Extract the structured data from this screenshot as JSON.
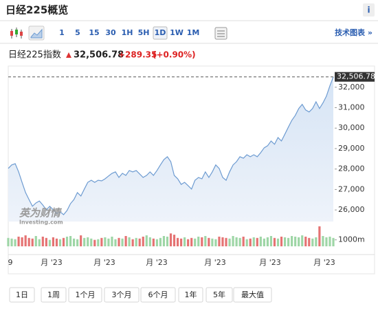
{
  "header": {
    "title": "日经225概览",
    "info": "i"
  },
  "toolbar": {
    "intervals": [
      "1",
      "5",
      "15",
      "30",
      "1H",
      "5H",
      "1D",
      "1W",
      "1M"
    ],
    "selected_index": 6,
    "link": "技术图表 »"
  },
  "quote": {
    "name": "日经225指数",
    "price": "32,506.78",
    "change": "+289.35",
    "change_pct": "(+0.90%)"
  },
  "chart_data": {
    "type": "line",
    "color": "#6d9bd1",
    "values": [
      28030,
      28200,
      28260,
      27860,
      27350,
      26850,
      26510,
      26180,
      26340,
      26440,
      26240,
      26010,
      26180,
      26010,
      25840,
      25910,
      25770,
      25970,
      26310,
      26510,
      26850,
      26680,
      27020,
      27350,
      27450,
      27350,
      27450,
      27420,
      27520,
      27660,
      27790,
      27860,
      27590,
      27790,
      27690,
      27930,
      27860,
      27930,
      27760,
      27590,
      27690,
      27860,
      27690,
      27930,
      28200,
      28460,
      28600,
      28360,
      27690,
      27520,
      27250,
      27350,
      27190,
      27020,
      27450,
      27590,
      27520,
      27860,
      27590,
      27860,
      28200,
      28030,
      27590,
      27450,
      27860,
      28200,
      28360,
      28600,
      28530,
      28700,
      28600,
      28700,
      28600,
      28800,
      29040,
      29140,
      29370,
      29210,
      29540,
      29370,
      29710,
      30050,
      30380,
      30620,
      30960,
      31160,
      30890,
      30790,
      30960,
      31290,
      30960,
      31230,
      31560,
      32070,
      32506.78
    ],
    "ylim": [
      25500,
      32900
    ],
    "yticks": [
      {
        "value": 26000,
        "label": "26,000"
      },
      {
        "value": 27000,
        "label": "27,000"
      },
      {
        "value": 28000,
        "label": "28,000"
      },
      {
        "value": 29000,
        "label": "29,000"
      },
      {
        "value": 30000,
        "label": "30,000"
      },
      {
        "value": 31000,
        "label": "31,000"
      },
      {
        "value": 32000,
        "label": "32,000"
      }
    ],
    "x_labels": [
      "9",
      "月 '23",
      "月 '23",
      "月 '23",
      "月 '23",
      "月 '23",
      "月 '23"
    ],
    "watermark": "英为财情",
    "watermark_sub": "Investing.com",
    "volume": {
      "values": [
        1300,
        1200,
        1100,
        1500,
        1400,
        1700,
        1300,
        1200,
        1600,
        1100,
        1500,
        1300,
        1000,
        1400,
        1200,
        1100,
        1300,
        1500,
        1600,
        1200,
        1100,
        1700,
        1300,
        1400,
        1200,
        1000,
        1100,
        1300,
        1400,
        1200,
        1500,
        1100,
        1300,
        1200,
        1600,
        1400,
        1100,
        1300,
        1200,
        1500,
        1700,
        1400,
        1200,
        1100,
        1300,
        1600,
        1500,
        2000,
        1800,
        1300,
        1200,
        1400,
        1100,
        1300,
        1200,
        1500,
        1400,
        1600,
        1300,
        1200,
        1100,
        1500,
        1400,
        1300,
        1200,
        1600,
        1400,
        1300,
        1500,
        1100,
        1200,
        1400,
        1300,
        1500,
        1200,
        1400,
        1600,
        1300,
        1200,
        1500,
        1400,
        1300,
        1600,
        1500,
        1400,
        1700,
        1500,
        1300,
        1200,
        1400,
        3100,
        1600,
        1400,
        1500,
        1300
      ],
      "ylim": [
        0,
        3200
      ],
      "yticks": [
        {
          "value": 1000,
          "label": "1000m"
        }
      ],
      "up_color": "#9ed6a6",
      "down_color": "#e57373"
    }
  },
  "ranges": [
    "1日",
    "1周",
    "1个月",
    "3个月",
    "6个月",
    "1年",
    "5年",
    "最大值"
  ]
}
